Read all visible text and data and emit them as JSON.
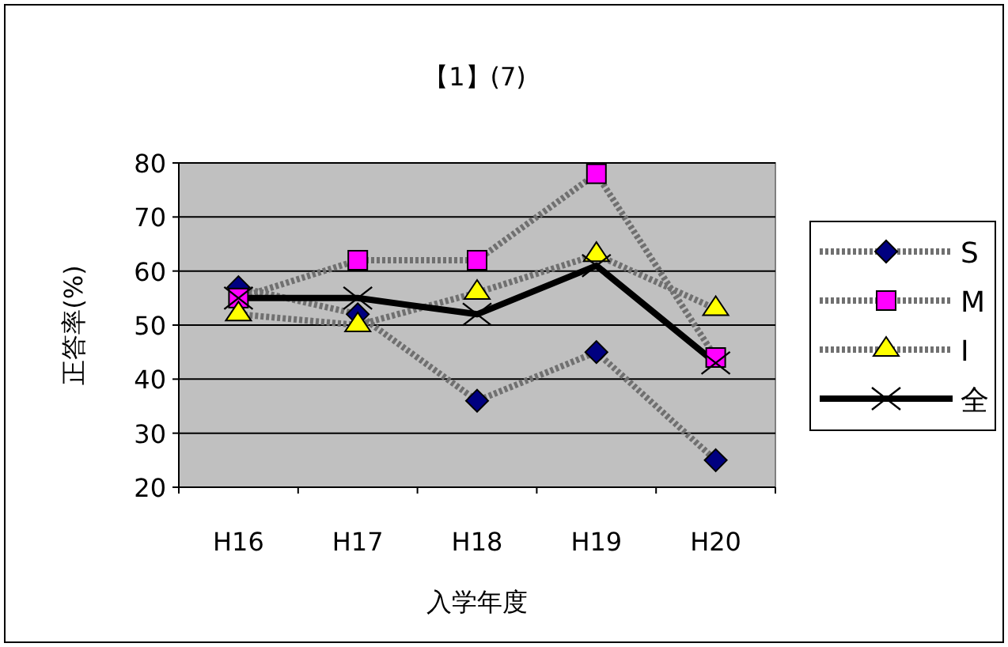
{
  "chart_data": {
    "type": "line",
    "title": "【1】(7)",
    "xlabel": "入学年度",
    "ylabel": "正答率(%)",
    "categories": [
      "H16",
      "H17",
      "H18",
      "H19",
      "H20"
    ],
    "series": [
      {
        "name": "S",
        "color": "#000080",
        "marker": "diamond",
        "line_style": "dotted",
        "values": [
          57,
          52,
          36,
          45,
          25
        ]
      },
      {
        "name": "M",
        "color": "#ff00ff",
        "marker": "square",
        "line_style": "dotted",
        "values": [
          55,
          62,
          62,
          78,
          44
        ]
      },
      {
        "name": "I",
        "color": "#ffff00",
        "marker": "triangle",
        "line_style": "dotted",
        "values": [
          52,
          50,
          56,
          63,
          53
        ]
      },
      {
        "name": "全",
        "color": "#000000",
        "marker": "cross",
        "line_style": "solid",
        "values": [
          55,
          55,
          52,
          61,
          43
        ]
      }
    ],
    "ylim": [
      20,
      80
    ],
    "yticks": [
      20,
      30,
      40,
      50,
      60,
      70,
      80
    ],
    "grid": "y",
    "legend": "right"
  }
}
